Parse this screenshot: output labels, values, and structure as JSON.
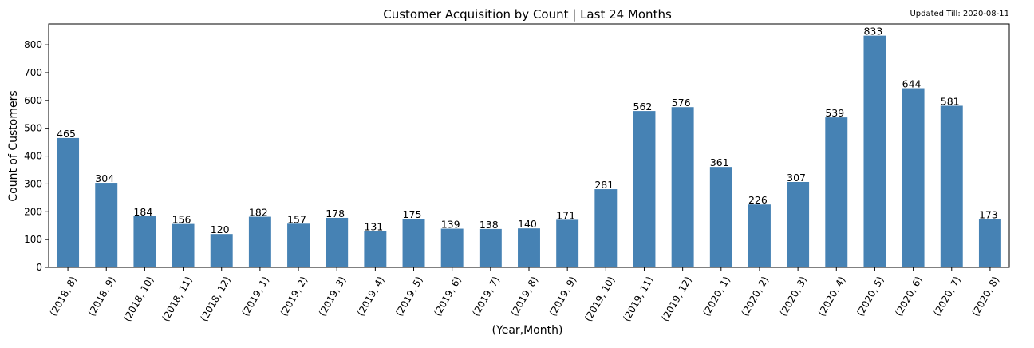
{
  "chart_data": {
    "type": "bar",
    "title": "Customer Acquisition by Count | Last 24 Months",
    "note": "Updated Till: 2020-08-11",
    "xlabel": "(Year,Month)",
    "ylabel": "Count of Customers",
    "ylim": [
      0,
      875
    ],
    "yticks": [
      0,
      100,
      200,
      300,
      400,
      500,
      600,
      700,
      800
    ],
    "grid": false,
    "bar_color": "#4682b4",
    "categories": [
      "(2018, 8)",
      "(2018, 9)",
      "(2018, 10)",
      "(2018, 11)",
      "(2018, 12)",
      "(2019, 1)",
      "(2019, 2)",
      "(2019, 3)",
      "(2019, 4)",
      "(2019, 5)",
      "(2019, 6)",
      "(2019, 7)",
      "(2019, 8)",
      "(2019, 9)",
      "(2019, 10)",
      "(2019, 11)",
      "(2019, 12)",
      "(2020, 1)",
      "(2020, 2)",
      "(2020, 3)",
      "(2020, 4)",
      "(2020, 5)",
      "(2020, 6)",
      "(2020, 7)",
      "(2020, 8)"
    ],
    "values": [
      465,
      304,
      184,
      156,
      120,
      182,
      157,
      178,
      131,
      175,
      139,
      138,
      140,
      171,
      281,
      562,
      576,
      361,
      226,
      307,
      539,
      833,
      644,
      581,
      173
    ]
  }
}
